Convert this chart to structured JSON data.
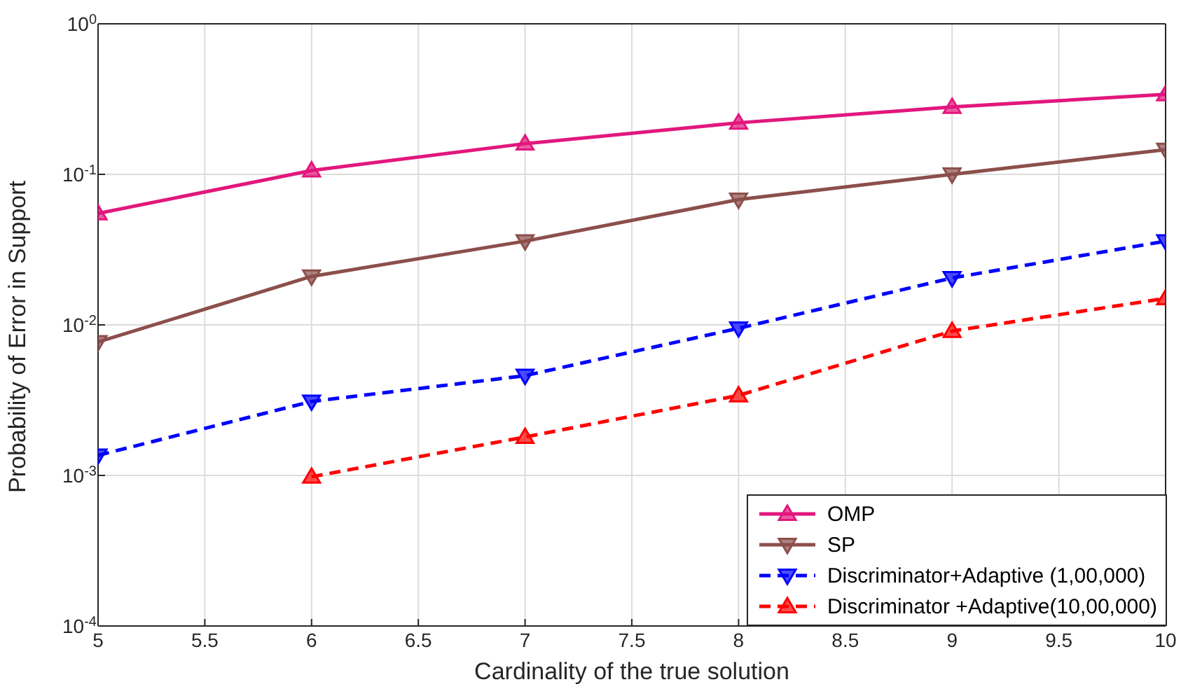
{
  "chart_data": {
    "type": "line",
    "xlabel": "Cardinality of the true solution",
    "ylabel": "Probability of Error in Support",
    "x": [
      5,
      6,
      7,
      8,
      9,
      10
    ],
    "series": [
      {
        "name": "OMP",
        "color": "#e2177d",
        "marker": "triangle",
        "line_style": "solid",
        "values": [
          0.055,
          0.106,
          0.16,
          0.22,
          0.28,
          0.34
        ]
      },
      {
        "name": "SP",
        "color": "#8c4f4b",
        "marker": "triangle-down",
        "line_style": "solid",
        "values": [
          0.0077,
          0.021,
          0.036,
          0.068,
          0.1,
          0.146
        ]
      },
      {
        "name": "Discriminator+Adaptive (1,00,000)",
        "color": "#0000ff",
        "marker": "triangle-down",
        "line_style": "dashed",
        "values": [
          0.00136,
          0.0031,
          0.0046,
          0.0095,
          0.0205,
          0.036
        ]
      },
      {
        "name": "Discriminator +Adaptive(10,00,000)",
        "color": "#ff0000",
        "marker": "triangle",
        "line_style": "dashed",
        "values": [
          null,
          0.00098,
          0.0018,
          0.0034,
          0.0091,
          0.015
        ]
      }
    ],
    "log": "y",
    "xlim": [
      5,
      10
    ],
    "xticks": [
      5,
      5.5,
      6,
      6.5,
      7,
      7.5,
      8,
      8.5,
      9,
      9.5,
      10
    ],
    "ylim": [
      0.0001,
      1
    ],
    "yticks": [
      {
        "value": 0.0001,
        "label": "10$^{-4}$"
      },
      {
        "value": 0.001,
        "label": "10$^{-3}$"
      },
      {
        "value": 0.01,
        "label": "10$^{-2}$"
      },
      {
        "value": 0.1,
        "label": "10$^{-1}$"
      },
      {
        "value": 1,
        "label": "10$^{0}$"
      }
    ],
    "grid": true,
    "legend": "bottom right"
  }
}
